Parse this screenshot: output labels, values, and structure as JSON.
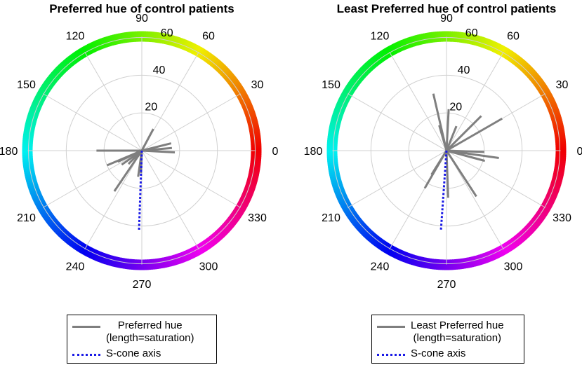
{
  "chart_data": [
    {
      "type": "polar-line",
      "title": "Preferred hue of control patients",
      "theta_ticks": [
        "0",
        "30",
        "60",
        "90",
        "120",
        "150",
        "180",
        "210",
        "240",
        "270",
        "300",
        "330"
      ],
      "radial_ticks": [
        "20",
        "40",
        "60"
      ],
      "r_max": 60,
      "color_ring": "hue wheel (0°=red, 60°=yellow, 120°=green, 180°=cyan, 240°=blue, 300°=magenta)",
      "series": [
        {
          "name": "Preferred hue",
          "style": "solid gray",
          "segments": [
            {
              "angle_deg": 62,
              "r": 13
            },
            {
              "angle_deg": 14,
              "r": 16
            },
            {
              "angle_deg": 5,
              "r": 16
            },
            {
              "angle_deg": 357,
              "r": 17.5
            },
            {
              "angle_deg": 180,
              "r": 24
            },
            {
              "angle_deg": 203,
              "r": 20
            },
            {
              "angle_deg": 205,
              "r": 14
            },
            {
              "angle_deg": 215,
              "r": 13
            },
            {
              "angle_deg": 225,
              "r": 10
            },
            {
              "angle_deg": 236,
              "r": 26
            },
            {
              "angle_deg": 262,
              "r": 14
            },
            {
              "angle_deg": 268,
              "r": 12
            }
          ]
        },
        {
          "name": "S-cone axis",
          "style": "dotted blue",
          "segments": [
            {
              "angle_deg": 268,
              "r": 42
            }
          ]
        }
      ],
      "legend": [
        {
          "label_line1": "Preferred hue",
          "label_line2": "(length=saturation)",
          "color": "#7f7f7f"
        },
        {
          "label_line1": "S-cone axis",
          "label_line2": "",
          "color": "#1a1ae6"
        }
      ]
    },
    {
      "type": "polar-line",
      "title": "Least Preferred hue of control patients",
      "theta_ticks": [
        "0",
        "30",
        "60",
        "90",
        "120",
        "150",
        "180",
        "210",
        "240",
        "270",
        "300",
        "330"
      ],
      "radial_ticks": [
        "20",
        "40",
        "60"
      ],
      "r_max": 60,
      "color_ring": "hue wheel",
      "series": [
        {
          "name": "Least Preferred hue",
          "style": "solid gray",
          "segments": [
            {
              "angle_deg": 103,
              "r": 31
            },
            {
              "angle_deg": 87,
              "r": 22
            },
            {
              "angle_deg": 68,
              "r": 14
            },
            {
              "angle_deg": 45,
              "r": 26
            },
            {
              "angle_deg": 30,
              "r": 34
            },
            {
              "angle_deg": 358,
              "r": 20
            },
            {
              "angle_deg": 352,
              "r": 28
            },
            {
              "angle_deg": 345,
              "r": 21
            },
            {
              "angle_deg": 303,
              "r": 29
            },
            {
              "angle_deg": 272,
              "r": 25
            },
            {
              "angle_deg": 240,
              "r": 23
            },
            {
              "angle_deg": 238,
              "r": 15
            },
            {
              "angle_deg": 106,
              "r": 14
            }
          ]
        },
        {
          "name": "S-cone axis",
          "style": "dotted blue",
          "segments": [
            {
              "angle_deg": 266,
              "r": 42
            }
          ]
        }
      ],
      "legend": [
        {
          "label_line1": "Least Preferred hue",
          "label_line2": "(length=saturation)",
          "color": "#7f7f7f"
        },
        {
          "label_line1": "S-cone axis",
          "label_line2": "",
          "color": "#1a1ae6"
        }
      ]
    }
  ]
}
